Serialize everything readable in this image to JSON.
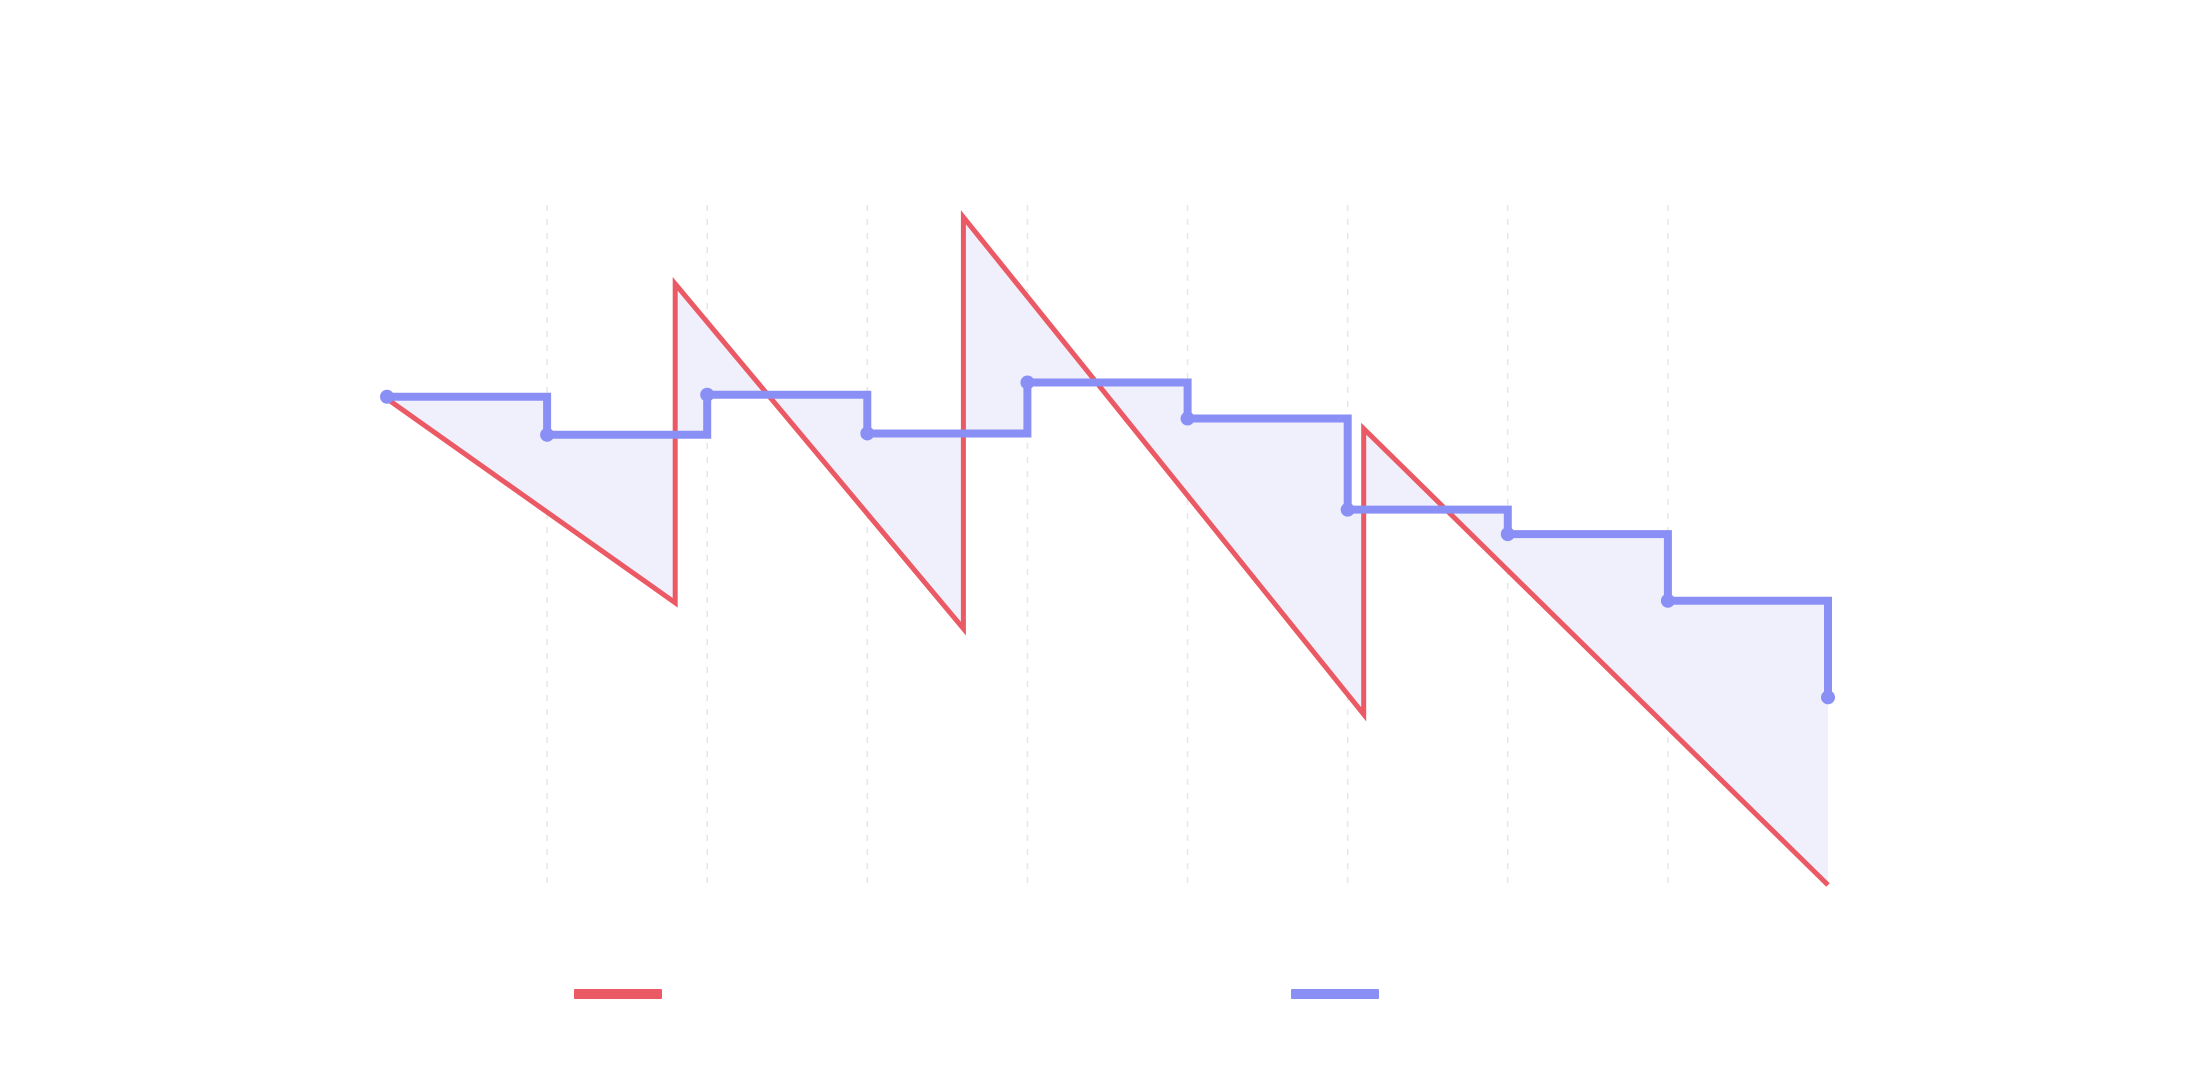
{
  "chart_data": {
    "type": "line",
    "title": "",
    "xlabel": "",
    "ylabel": "",
    "x": [
      0,
      1,
      2,
      3,
      4,
      5,
      6,
      7,
      8,
      9
    ],
    "xlim": [
      0,
      9
    ],
    "ylim": [
      0,
      100
    ],
    "grid": {
      "x": true,
      "y": false,
      "style": "dashed"
    },
    "legend": {
      "position": "bottom",
      "labels_visible": false
    },
    "series": [
      {
        "name": "",
        "render": "sawtooth",
        "color": "#eb5a64",
        "start_values": [
          71.5,
          88.4,
          98.2,
          67.1
        ],
        "end_values": [
          41.5,
          37.7,
          25.1,
          0.0
        ],
        "segments": [
          [
            0,
            1.8
          ],
          [
            1.8,
            3.6
          ],
          [
            3.6,
            6.1
          ],
          [
            6.1,
            9
          ]
        ]
      },
      {
        "name": "",
        "render": "step-after",
        "color": "#8a8ff5",
        "fill": "#efeffc",
        "values": [
          71.8,
          66.2,
          72.1,
          66.4,
          73.9,
          68.6,
          55.2,
          51.6,
          41.8,
          27.6
        ]
      }
    ]
  }
}
